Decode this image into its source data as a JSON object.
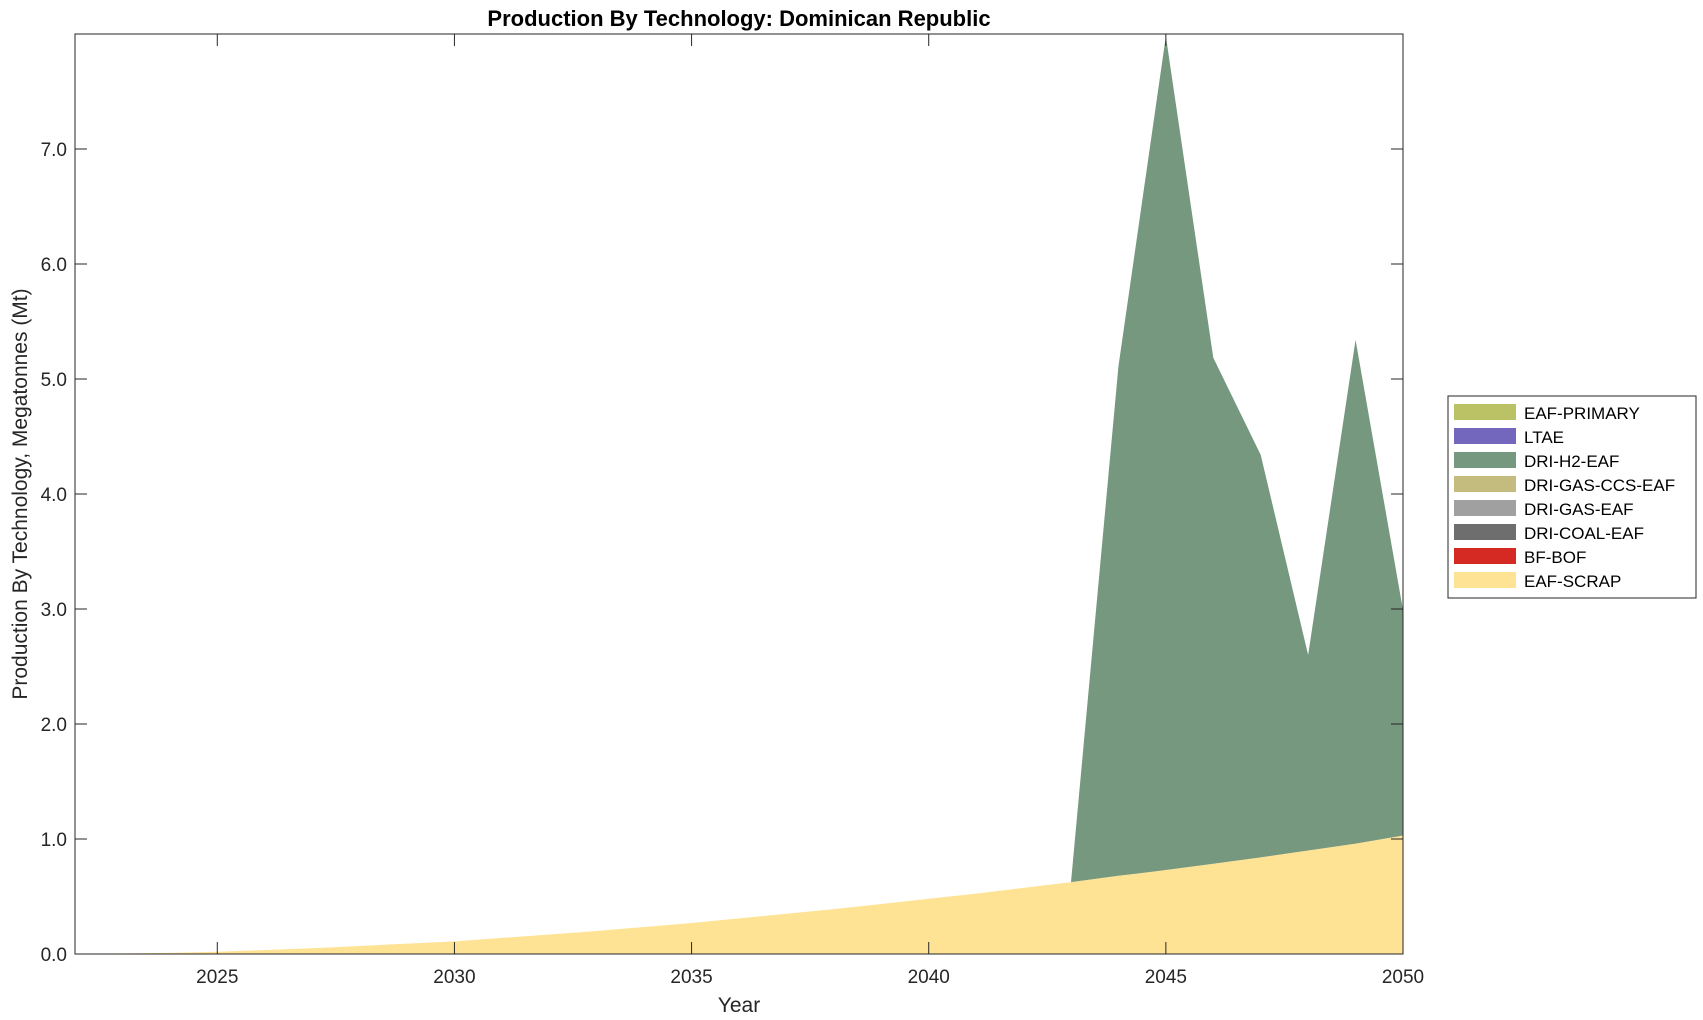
{
  "chart_data": {
    "type": "area",
    "title": "Production By Technology: Dominican Republic",
    "xlabel": "Year",
    "ylabel": "Production By Technology, Megatonnes (Mt)",
    "xlim": [
      2022,
      2050
    ],
    "ylim": [
      0,
      8.0
    ],
    "xticks": [
      2025,
      2030,
      2035,
      2040,
      2045,
      2050
    ],
    "yticks": [
      0.0,
      1.0,
      2.0,
      3.0,
      4.0,
      5.0,
      6.0,
      7.0
    ],
    "ytick_labels": [
      "0.0",
      "1.0",
      "2.0",
      "3.0",
      "4.0",
      "5.0",
      "6.0",
      "7.0"
    ],
    "stacked": true,
    "grid": false,
    "legend_position": "outside-right",
    "x": [
      2022,
      2023,
      2024,
      2025,
      2026,
      2027,
      2028,
      2029,
      2030,
      2031,
      2032,
      2033,
      2034,
      2035,
      2036,
      2037,
      2038,
      2039,
      2040,
      2041,
      2042,
      2043,
      2044,
      2045,
      2046,
      2047,
      2048,
      2049,
      2050
    ],
    "series": [
      {
        "name": "EAF-SCRAP",
        "color": "#FFE395",
        "values": [
          0.0,
          0.005,
          0.01,
          0.02,
          0.035,
          0.05,
          0.07,
          0.09,
          0.11,
          0.14,
          0.17,
          0.2,
          0.235,
          0.27,
          0.31,
          0.35,
          0.39,
          0.435,
          0.48,
          0.525,
          0.575,
          0.625,
          0.68,
          0.73,
          0.785,
          0.84,
          0.9,
          0.96,
          1.03
        ]
      },
      {
        "name": "BF-BOF",
        "color": "#D42A23",
        "values": [
          0,
          0,
          0,
          0,
          0,
          0,
          0,
          0,
          0,
          0,
          0,
          0,
          0,
          0,
          0,
          0,
          0,
          0,
          0,
          0,
          0,
          0,
          0,
          0,
          0,
          0,
          0,
          0,
          0
        ]
      },
      {
        "name": "DRI-COAL-EAF",
        "color": "#6E6E6E",
        "values": [
          0,
          0,
          0,
          0,
          0,
          0,
          0,
          0,
          0,
          0,
          0,
          0,
          0,
          0,
          0,
          0,
          0,
          0,
          0,
          0,
          0,
          0,
          0,
          0,
          0,
          0,
          0,
          0,
          0
        ]
      },
      {
        "name": "DRI-GAS-EAF",
        "color": "#A0A0A0",
        "values": [
          0,
          0,
          0,
          0,
          0,
          0,
          0,
          0,
          0,
          0,
          0,
          0,
          0,
          0,
          0,
          0,
          0,
          0,
          0,
          0,
          0,
          0,
          0,
          0,
          0,
          0,
          0,
          0,
          0
        ]
      },
      {
        "name": "DRI-GAS-CCS-EAF",
        "color": "#C4BC7E",
        "values": [
          0,
          0,
          0,
          0,
          0,
          0,
          0,
          0,
          0,
          0,
          0,
          0,
          0,
          0,
          0,
          0,
          0,
          0,
          0,
          0,
          0,
          0,
          0,
          0,
          0,
          0,
          0,
          0,
          0
        ]
      },
      {
        "name": "DRI-H2-EAF",
        "color": "#76987E",
        "values": [
          0,
          0,
          0,
          0,
          0,
          0,
          0,
          0,
          0,
          0,
          0,
          0,
          0,
          0,
          0,
          0,
          0,
          0,
          0,
          0,
          0,
          0,
          4.43,
          7.25,
          4.4,
          3.5,
          1.7,
          4.38,
          1.96
        ]
      },
      {
        "name": "LTAE",
        "color": "#7366BD",
        "values": [
          0,
          0,
          0,
          0,
          0,
          0,
          0,
          0,
          0,
          0,
          0,
          0,
          0,
          0,
          0,
          0,
          0,
          0,
          0,
          0,
          0,
          0,
          0,
          0,
          0,
          0,
          0,
          0,
          0
        ]
      },
      {
        "name": "EAF-PRIMARY",
        "color": "#BBC266",
        "values": [
          0,
          0,
          0,
          0,
          0,
          0,
          0,
          0,
          0,
          0,
          0,
          0,
          0,
          0,
          0,
          0,
          0,
          0,
          0,
          0,
          0,
          0,
          0,
          0,
          0,
          0,
          0,
          0,
          0
        ]
      }
    ],
    "legend_order": [
      "EAF-PRIMARY",
      "LTAE",
      "DRI-H2-EAF",
      "DRI-GAS-CCS-EAF",
      "DRI-GAS-EAF",
      "DRI-COAL-EAF",
      "BF-BOF",
      "EAF-SCRAP"
    ]
  }
}
